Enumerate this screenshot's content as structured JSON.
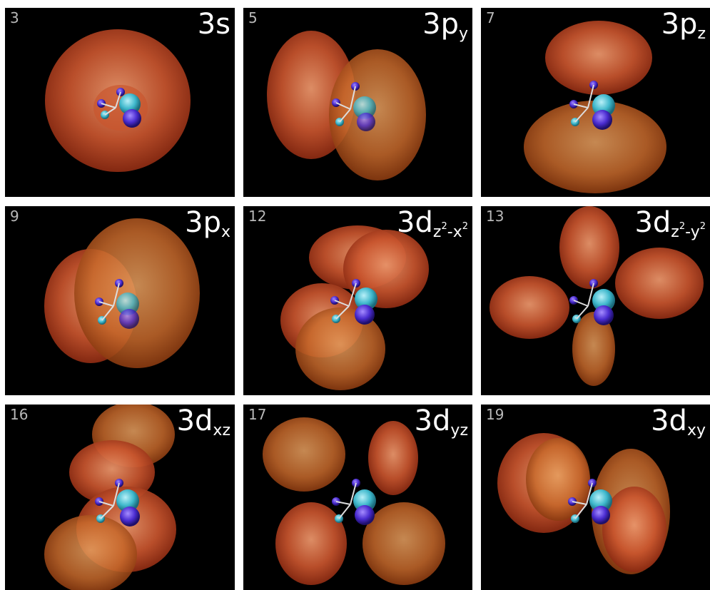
{
  "panels": [
    {
      "index": "3",
      "label": "3s",
      "sub": ""
    },
    {
      "index": "5",
      "label": "3p",
      "sub": "y"
    },
    {
      "index": "7",
      "label": "3p",
      "sub": "z"
    },
    {
      "index": "9",
      "label": "3p",
      "sub": "x"
    },
    {
      "index": "12",
      "label": "3d",
      "sub_a": "z",
      "sup_a": "2",
      "sub_b": "x",
      "sup_b": "2"
    },
    {
      "index": "13",
      "label": "3d",
      "sub_a": "z",
      "sup_a": "2",
      "sub_b": "y",
      "sup_b": "2"
    },
    {
      "index": "16",
      "label": "3d",
      "sub": "xz"
    },
    {
      "index": "17",
      "label": "3d",
      "sub": "yz"
    },
    {
      "index": "19",
      "label": "3d",
      "sub": "xy"
    }
  ],
  "colors": {
    "background": "#000000",
    "lobe": "#c0482a",
    "lobe_light": "#e07a4a",
    "atom_cyan": "#4fc8d8",
    "atom_purple": "#5a3bd0"
  }
}
